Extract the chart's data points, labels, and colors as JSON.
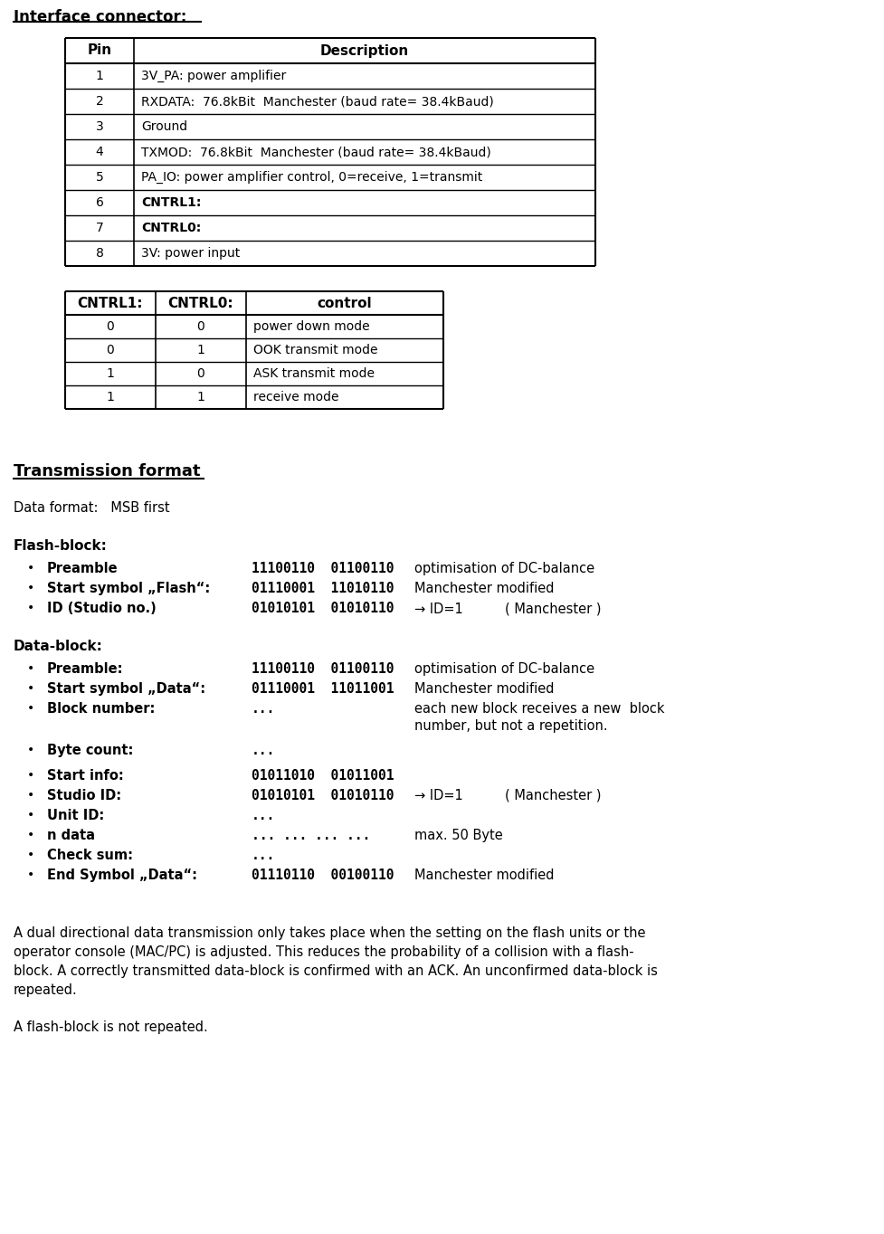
{
  "title": "Interface connector:",
  "pin_table_header": [
    "Pin",
    "Description"
  ],
  "pin_table_rows": [
    [
      "1",
      "3V_PA: power amplifier"
    ],
    [
      "2",
      "RXDATA:  76.8kBit  Manchester (baud rate= 38.4kBaud)"
    ],
    [
      "3",
      "Ground"
    ],
    [
      "4",
      "TXMOD:  76.8kBit  Manchester (baud rate= 38.4kBaud)"
    ],
    [
      "5",
      "PA_IO: power amplifier control, 0=receive, 1=transmit"
    ],
    [
      "6",
      "CNTRL1:"
    ],
    [
      "7",
      "CNTRL0:"
    ],
    [
      "8",
      "3V: power input"
    ]
  ],
  "pin_bold_rows": [
    5,
    6
  ],
  "ctrl_table_header": [
    "CNTRL1:",
    "CNTRL0:",
    "control"
  ],
  "ctrl_table_rows": [
    [
      "0",
      "0",
      "power down mode"
    ],
    [
      "0",
      "1",
      "OOK transmit mode"
    ],
    [
      "1",
      "0",
      "ASK transmit mode"
    ],
    [
      "1",
      "1",
      "receive mode"
    ]
  ],
  "transmission_title": "Transmission format",
  "data_format_line": "Data format:   MSB first",
  "flash_block_title": "Flash-block:",
  "flash_items": [
    {
      "label": "Preamble",
      "code": "11100110  01100110",
      "note": "optimisation of DC-balance"
    },
    {
      "label": "Start symbol „Flash“:",
      "code": "01110001  11010110",
      "note": "Manchester modified"
    },
    {
      "label": "ID (Studio no.)",
      "code": "01010101  01010110",
      "note": "→ ID=1          ( Manchester )"
    }
  ],
  "data_block_title": "Data-block:",
  "data_items": [
    {
      "label": "Preamble:",
      "code": "11100110  01100110",
      "note": "optimisation of DC-balance"
    },
    {
      "label": "Start symbol „Data“:",
      "code": "01110001  11011001",
      "note": "Manchester modified"
    },
    {
      "label": "Block number:",
      "code": "...",
      "note": "each new block receives a new  block\nnumber, but not a repetition."
    },
    {
      "label": "Byte count:",
      "code": "...",
      "note": ""
    },
    {
      "label": "Start info:",
      "code": "01011010  01011001",
      "note": ""
    },
    {
      "label": "Studio ID:",
      "code": "01010101  01010110",
      "note": "→ ID=1          ( Manchester )"
    },
    {
      "label": "Unit ID:",
      "code": "...",
      "note": ""
    },
    {
      "label": "n data",
      "code": "... ... ... ...",
      "note": "max. 50 Byte"
    },
    {
      "label": "Check sum:",
      "code": "...",
      "note": ""
    },
    {
      "label": "End Symbol „Data“:",
      "code": "01110110  00100110",
      "note": "Manchester modified"
    }
  ],
  "footer_text": "A dual directional data transmission only takes place when the setting on the flash units or the\noperator console (MAC/PC) is adjusted. This reduces the probability of a collision with a flash-\nblock. A correctly transmitted data-block is confirmed with an ACK. An unconfirmed data-block is\nrepeated.",
  "footer_text2": "A flash-block is not repeated.",
  "bg_color": "#ffffff",
  "text_color": "#000000"
}
